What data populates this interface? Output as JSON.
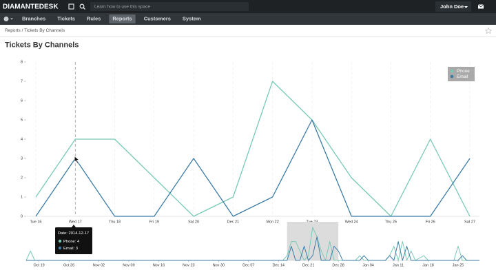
{
  "header": {
    "logo": "DIAMANTEDESK",
    "search_placeholder": "Learn how to use this space",
    "user": "John Doe"
  },
  "nav": {
    "items": [
      "Branches",
      "Tickets",
      "Rules",
      "Reports",
      "Customers",
      "System"
    ],
    "active": "Reports"
  },
  "breadcrumb": "Reports / Tickets By Channels",
  "tooltip": {
    "date": "Date: 2014-12-17",
    "items": [
      "Phone: 4",
      "Email: 3"
    ]
  },
  "chart_data": [
    {
      "type": "line",
      "title": "Tickets By Channels",
      "categories": [
        "Tue 16",
        "Wed 17",
        "Thu 18",
        "Fri 19",
        "Sat 20",
        "Dec 21",
        "Mon 22",
        "Tue 23",
        "Wed 24",
        "Thu 25",
        "Fri 26",
        "Sat 27"
      ],
      "series": [
        {
          "name": "Phone",
          "color": "#78c9b6",
          "values": [
            1,
            4,
            4,
            2,
            0,
            1,
            7,
            5,
            2,
            0,
            4,
            0
          ]
        },
        {
          "name": "Email",
          "color": "#3b7ca6",
          "values": [
            0,
            3,
            0,
            0,
            3,
            0,
            1,
            5,
            0,
            0,
            0,
            3
          ]
        }
      ],
      "ylim": [
        0,
        8
      ],
      "yticks": [
        0,
        1,
        2,
        3,
        4,
        5,
        6,
        7,
        8
      ],
      "legend": "top-right",
      "hover": 1
    },
    {
      "type": "line",
      "x": [
        "2014-10-16",
        "2014-10-17",
        "2014-10-18",
        "2014-12-15",
        "2014-12-16",
        "2014-12-17",
        "2014-12-18",
        "2014-12-19",
        "2014-12-20",
        "2014-12-21",
        "2014-12-22",
        "2014-12-23",
        "2014-12-24",
        "2014-12-25",
        "2014-12-26",
        "2014-12-27",
        "2014-12-28",
        "2014-12-29",
        "2015-01-01",
        "2015-01-02",
        "2015-01-03",
        "2015-01-04",
        "2015-01-08",
        "2015-01-09",
        "2015-01-10",
        "2015-01-11",
        "2015-01-12",
        "2015-01-13",
        "2015-01-14",
        "2015-01-15",
        "2015-01-17",
        "2015-01-18",
        "2015-01-24",
        "2015-01-25",
        "2015-01-26",
        "2015-01-27",
        "2015-01-30"
      ],
      "series": [
        {
          "color": "#78c9b6",
          "values": [
            0,
            2,
            0,
            0,
            1,
            4,
            4,
            2,
            0,
            1,
            7,
            5,
            2,
            0,
            4,
            0,
            0,
            0,
            0,
            1,
            0,
            0,
            0,
            1,
            3,
            0,
            4,
            0,
            2,
            0,
            1,
            0,
            0,
            3,
            0,
            0,
            0
          ]
        },
        {
          "color": "#3b7ca6",
          "values": [
            0,
            0,
            0,
            0,
            0,
            3,
            0,
            0,
            3,
            0,
            1,
            5,
            0,
            0,
            0,
            3,
            2,
            0,
            0,
            0,
            1,
            0,
            0,
            1,
            0,
            4,
            0,
            3,
            0,
            0,
            0,
            0,
            0,
            0,
            1,
            0,
            0
          ]
        }
      ],
      "xlim": [
        "2014-10-16",
        "2015-01-30"
      ],
      "xticks": [
        {
          "value": "2014-10-19",
          "label": "Oct 19"
        },
        {
          "value": "2014-10-26",
          "label": "Oct 26"
        },
        {
          "value": "2014-11-02",
          "label": "Nov 02"
        },
        {
          "value": "2014-11-09",
          "label": "Nov 09"
        },
        {
          "value": "2014-11-16",
          "label": "Nov 16"
        },
        {
          "value": "2014-11-23",
          "label": "Nov 23"
        },
        {
          "value": "2014-11-30",
          "label": "Nov 30"
        },
        {
          "value": "2014-12-07",
          "label": "Dec 07"
        },
        {
          "value": "2014-12-14",
          "label": "Dec 14"
        },
        {
          "value": "2014-12-21",
          "label": "Dec 21"
        },
        {
          "value": "2014-12-28",
          "label": "Dec 28"
        },
        {
          "value": "2015-01-04",
          "label": "Jan 04"
        },
        {
          "value": "2015-01-11",
          "label": "Jan 11"
        },
        {
          "value": "2015-01-18",
          "label": "Jan 18"
        },
        {
          "value": "2015-01-25",
          "label": "Jan 25"
        }
      ],
      "ylim": [
        0,
        7
      ],
      "selection": [
        "2014-12-16",
        "2014-12-28"
      ]
    }
  ]
}
